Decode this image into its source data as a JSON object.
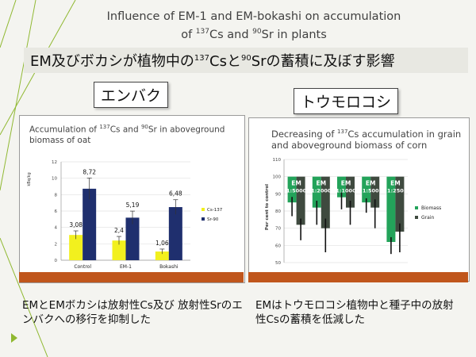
{
  "slide": {
    "title_line1": "Influence of EM-1 and EM-bokashi on accumulation",
    "title_line2_pre": "of ",
    "title_sup1": "137",
    "title_mid": "Cs and ",
    "title_sup2": "90",
    "title_post": "Sr in plants",
    "subtitle_pre": "EM及びボカシが植物中の",
    "subtitle_sup1": "137",
    "subtitle_mid": "Csと",
    "subtitle_sup2": "90",
    "subtitle_post": "Srの蓄積に及ぼす影響",
    "label_left": "エンバク",
    "label_right": "トウモロコシ",
    "caption_left": "EMとEMボカシは放射性Cs及び 放射性Srのエンバクへの移行を抑制した",
    "caption_right": "EMはトウモロコシ植物中と種子中の放射性Csの蓄積を低減した",
    "accent_color": "#c0561c",
    "deco_color": "#8fb830"
  },
  "chart_data": [
    {
      "type": "bar",
      "title_pre": "Accumulation of ",
      "title_sup1": "137",
      "title_mid": "Cs and ",
      "title_sup2": "90",
      "title_post": "Sr in aboveground biomass of oat",
      "ylabel": "kBq/kg",
      "ylim": [
        0,
        12
      ],
      "yticks": [
        "0",
        "2",
        "4",
        "6",
        "8",
        "10",
        "12"
      ],
      "categories": [
        "Control",
        "EM-1",
        "Bokashi"
      ],
      "series": [
        {
          "name": "Cs-137",
          "color": "#f2f01e",
          "values": [
            3.08,
            2.4,
            1.06
          ],
          "labels": [
            "3,08",
            "2,4",
            "1,06"
          ],
          "err": [
            0.5,
            0.5,
            0.3
          ]
        },
        {
          "name": "Sr-90",
          "color": "#1f2f6e",
          "values": [
            8.72,
            5.19,
            6.48
          ],
          "labels": [
            "8,72",
            "5,19",
            "6,48"
          ],
          "err": [
            1.3,
            0.8,
            0.9
          ]
        }
      ],
      "grid": true,
      "legend": "right"
    },
    {
      "type": "bar",
      "title_pre": "Decreasing of ",
      "title_sup1": "137",
      "title_post": "Cs accumulation in grain and aboveground biomass of corn",
      "ylabel": "Per cent to control",
      "ylim": [
        50,
        110
      ],
      "yticks": [
        "50",
        "60",
        "70",
        "80",
        "90",
        "100",
        "110"
      ],
      "baseline": 100,
      "categories": [
        "EM\n1:5000",
        "EM\n1:2000",
        "EM\n1:1000",
        "EM\n1:500",
        "EM\n1:250"
      ],
      "category_lines": [
        [
          "EM",
          "1:5000"
        ],
        [
          "EM",
          "1:2000"
        ],
        [
          "EM",
          "1:1000"
        ],
        [
          "EM",
          "1:500"
        ],
        [
          "EM",
          "1:250"
        ]
      ],
      "series": [
        {
          "name": "Biomass",
          "color": "#23a35a",
          "values": [
            85,
            82,
            88,
            85,
            62
          ],
          "err_low": [
            8,
            10,
            7,
            6,
            7
          ]
        },
        {
          "name": "Grain",
          "color": "#3f4a3f",
          "values": [
            72,
            70,
            82,
            82,
            68
          ],
          "err_low": [
            9,
            14,
            10,
            12,
            12
          ]
        }
      ],
      "grid": true,
      "legend": "right"
    }
  ]
}
